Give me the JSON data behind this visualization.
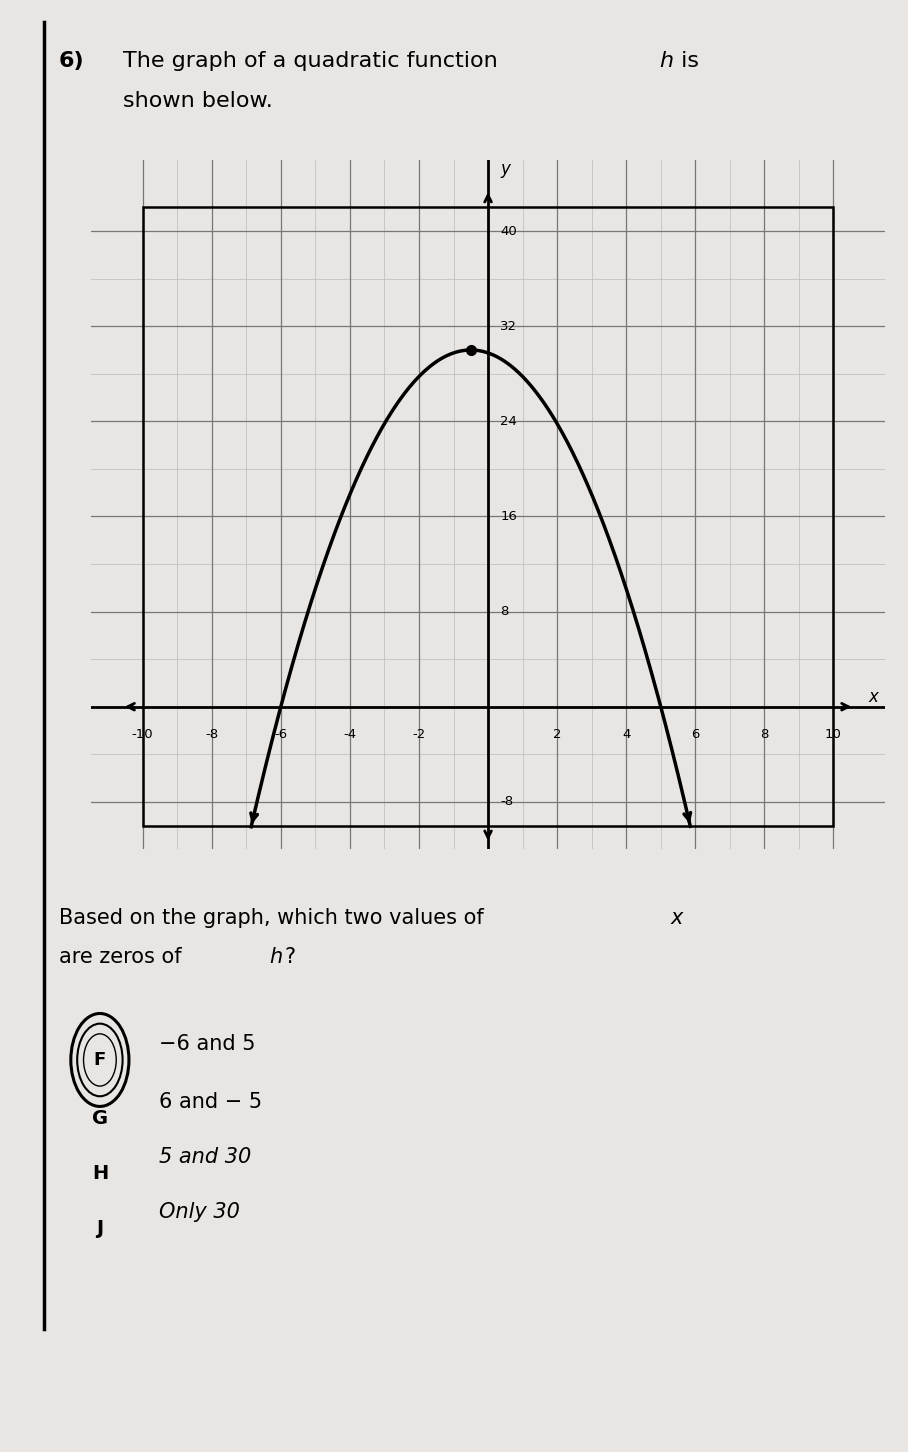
{
  "xlim": [
    -10,
    10
  ],
  "ylim": [
    -10,
    42
  ],
  "xticks_major": [
    -10,
    -8,
    -6,
    -4,
    -2,
    0,
    2,
    4,
    6,
    8,
    10
  ],
  "yticks_major": [
    -8,
    0,
    8,
    16,
    24,
    32,
    40
  ],
  "xticks_minor": [
    -9,
    -7,
    -5,
    -3,
    -1,
    1,
    3,
    5,
    7,
    9
  ],
  "yticks_minor": [
    -4,
    4,
    12,
    20,
    28,
    36
  ],
  "xtick_labels": [
    "-10",
    "-8",
    "-6",
    "-4",
    "-2",
    "",
    "2",
    "4",
    "6",
    "8",
    "10"
  ],
  "ytick_labels": [
    "-8",
    "",
    "8",
    "16",
    "24",
    "32",
    "40"
  ],
  "zero1": -6,
  "zero2": 5,
  "vertex_x": -0.5,
  "vertex_y": 30,
  "parabola_color": "#000000",
  "grid_major_color": "#777777",
  "grid_minor_color": "#bbbbbb",
  "axis_color": "#000000",
  "background_color": "#ffffff",
  "page_bg": "#e8e5e2",
  "vertex_dot_color": "#000000",
  "title_number": "6)",
  "title_main": "The graph of a quadratic function ",
  "title_h": "h",
  "title_end": " is",
  "title_line2": "shown below.",
  "question_line1a": "Based on the graph, which two values of ",
  "question_x": "x",
  "question_line2a": "are zeros of ",
  "question_h": "h",
  "question_mark": "?",
  "answers": [
    {
      "label": "F",
      "text": "−6 and 5",
      "italic": false,
      "circled": true
    },
    {
      "label": "G",
      "text": "6 and − 5",
      "italic": false,
      "circled": false
    },
    {
      "label": "H",
      "text": "5 and 30",
      "italic": true,
      "circled": false
    },
    {
      "label": "J",
      "text": "Only 30",
      "italic": true,
      "circled": false
    }
  ]
}
